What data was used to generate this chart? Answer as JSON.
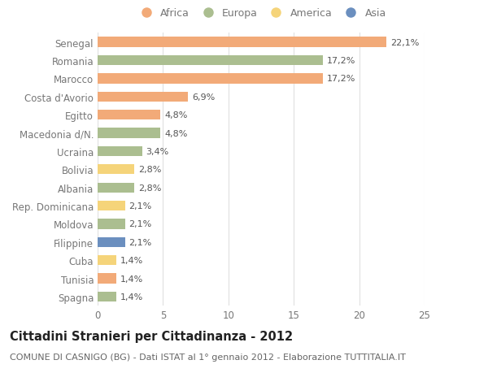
{
  "categories": [
    "Spagna",
    "Tunisia",
    "Cuba",
    "Filippine",
    "Moldova",
    "Rep. Dominicana",
    "Albania",
    "Bolivia",
    "Ucraina",
    "Macedonia d/N.",
    "Egitto",
    "Costa d'Avorio",
    "Marocco",
    "Romania",
    "Senegal"
  ],
  "values": [
    1.4,
    1.4,
    1.4,
    2.1,
    2.1,
    2.1,
    2.8,
    2.8,
    3.4,
    4.8,
    4.8,
    6.9,
    17.2,
    17.2,
    22.1
  ],
  "continents": [
    "Europa",
    "Africa",
    "America",
    "Asia",
    "Europa",
    "America",
    "Europa",
    "America",
    "Europa",
    "Europa",
    "Africa",
    "Africa",
    "Africa",
    "Europa",
    "Africa"
  ],
  "labels": [
    "1,4%",
    "1,4%",
    "1,4%",
    "2,1%",
    "2,1%",
    "2,1%",
    "2,8%",
    "2,8%",
    "3,4%",
    "4,8%",
    "4,8%",
    "6,9%",
    "17,2%",
    "17,2%",
    "22,1%"
  ],
  "colors": {
    "Africa": "#F2AA78",
    "Europa": "#ABBE90",
    "America": "#F5D47A",
    "Asia": "#6B8FBF"
  },
  "background_color": "#FFFFFF",
  "xlim": [
    0,
    25
  ],
  "xticks": [
    0,
    5,
    10,
    15,
    20,
    25
  ],
  "title": "Cittadini Stranieri per Cittadinanza - 2012",
  "subtitle": "COMUNE DI CASNIGO (BG) - Dati ISTAT al 1° gennaio 2012 - Elaborazione TUTTITALIA.IT",
  "legend_order": [
    "Africa",
    "Europa",
    "America",
    "Asia"
  ],
  "bar_height": 0.55,
  "grid_color": "#E0E0E0",
  "label_fontsize": 8,
  "title_fontsize": 10.5,
  "subtitle_fontsize": 8,
  "ytick_fontsize": 8.5,
  "xtick_fontsize": 8.5,
  "legend_fontsize": 9,
  "label_color": "#555555",
  "title_color": "#222222",
  "subtitle_color": "#666666",
  "tick_color": "#777777"
}
